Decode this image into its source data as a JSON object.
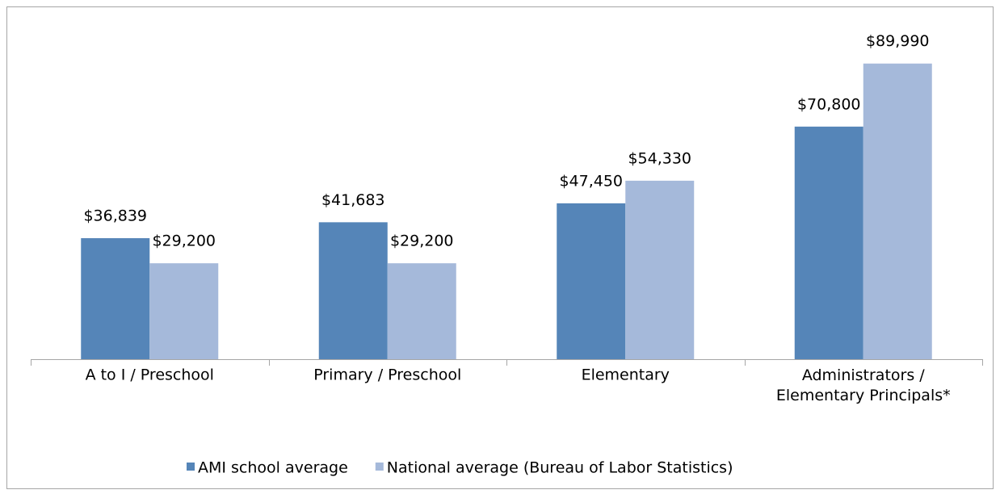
{
  "chart_data": {
    "type": "bar",
    "categories": [
      "A to I / Preschool",
      "Primary / Preschool",
      "Elementary",
      "Administrators /\nElementary Principals*"
    ],
    "series": [
      {
        "name": "AMI school average",
        "color": "#5585b8",
        "values": [
          36839,
          41683,
          47450,
          70800
        ],
        "value_labels": [
          "$36,839",
          "$41,683",
          "$47,450",
          "$70,800"
        ]
      },
      {
        "name": "National average (Bureau of Labor Statistics)",
        "color": "#a5b9da",
        "values": [
          29200,
          29200,
          54330,
          89990
        ],
        "value_labels": [
          "$29,200",
          "$29,200",
          "$54,330",
          "$89,990"
        ]
      }
    ],
    "ylim": [
      0,
      100000
    ],
    "legend": "bottom"
  }
}
